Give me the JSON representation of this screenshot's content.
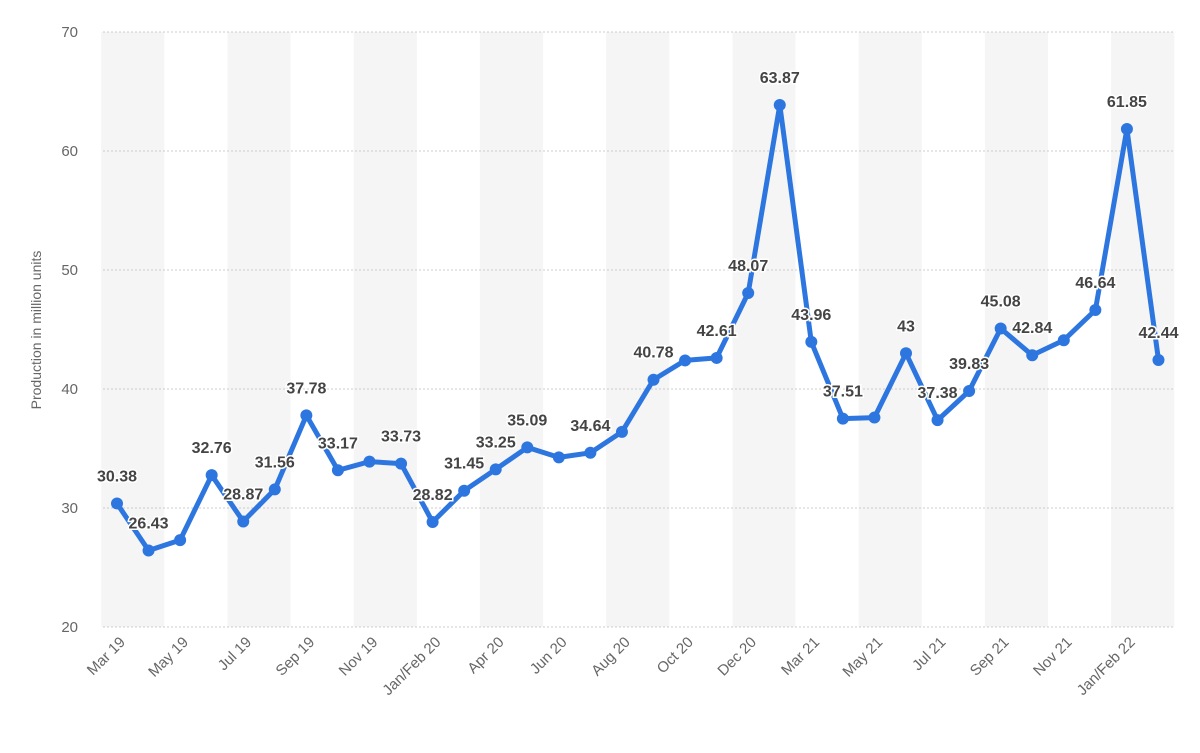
{
  "chart_data": {
    "type": "line",
    "title": "",
    "xlabel": "",
    "ylabel": "Production in million units",
    "ylim": [
      20,
      70
    ],
    "yticks": [
      20,
      30,
      40,
      50,
      60,
      70
    ],
    "grid": true,
    "legend": "none",
    "colors": {
      "line": "#2d76e0",
      "grid": "#cccccc",
      "band": "#f5f5f5",
      "text": "#666666",
      "label": "#444444"
    },
    "x_tick_labels": [
      "Mar 19",
      "May 19",
      "Jul 19",
      "Sep 19",
      "Nov 19",
      "Jan/Feb 20",
      "Apr 20",
      "Jun 20",
      "Aug 20",
      "Oct 20",
      "Dec 20",
      "Mar 21",
      "May 21",
      "Jul 21",
      "Sep 21",
      "Nov 21",
      "Jan/Feb 22"
    ],
    "series": [
      {
        "values": [
          30.38,
          26.43,
          27.3,
          32.76,
          28.87,
          31.56,
          37.78,
          33.17,
          33.9,
          33.73,
          28.82,
          31.45,
          33.25,
          35.09,
          34.25,
          34.64,
          36.4,
          40.78,
          42.4,
          42.61,
          48.07,
          63.87,
          43.96,
          37.51,
          37.6,
          43,
          37.38,
          39.83,
          45.08,
          42.84,
          44.1,
          46.64,
          61.85,
          42.44
        ],
        "data_labels": [
          "30.38",
          "26.43",
          "",
          "32.76",
          "28.87",
          "31.56",
          "37.78",
          "33.17",
          "",
          "33.73",
          "28.82",
          "31.45",
          "33.25",
          "35.09",
          "",
          "34.64",
          "",
          "40.78",
          "",
          "42.61",
          "48.07",
          "63.87",
          "43.96",
          "37.51",
          "",
          "43",
          "37.38",
          "39.83",
          "45.08",
          "42.84",
          "",
          "46.64",
          "61.85",
          "42.44"
        ]
      }
    ]
  }
}
